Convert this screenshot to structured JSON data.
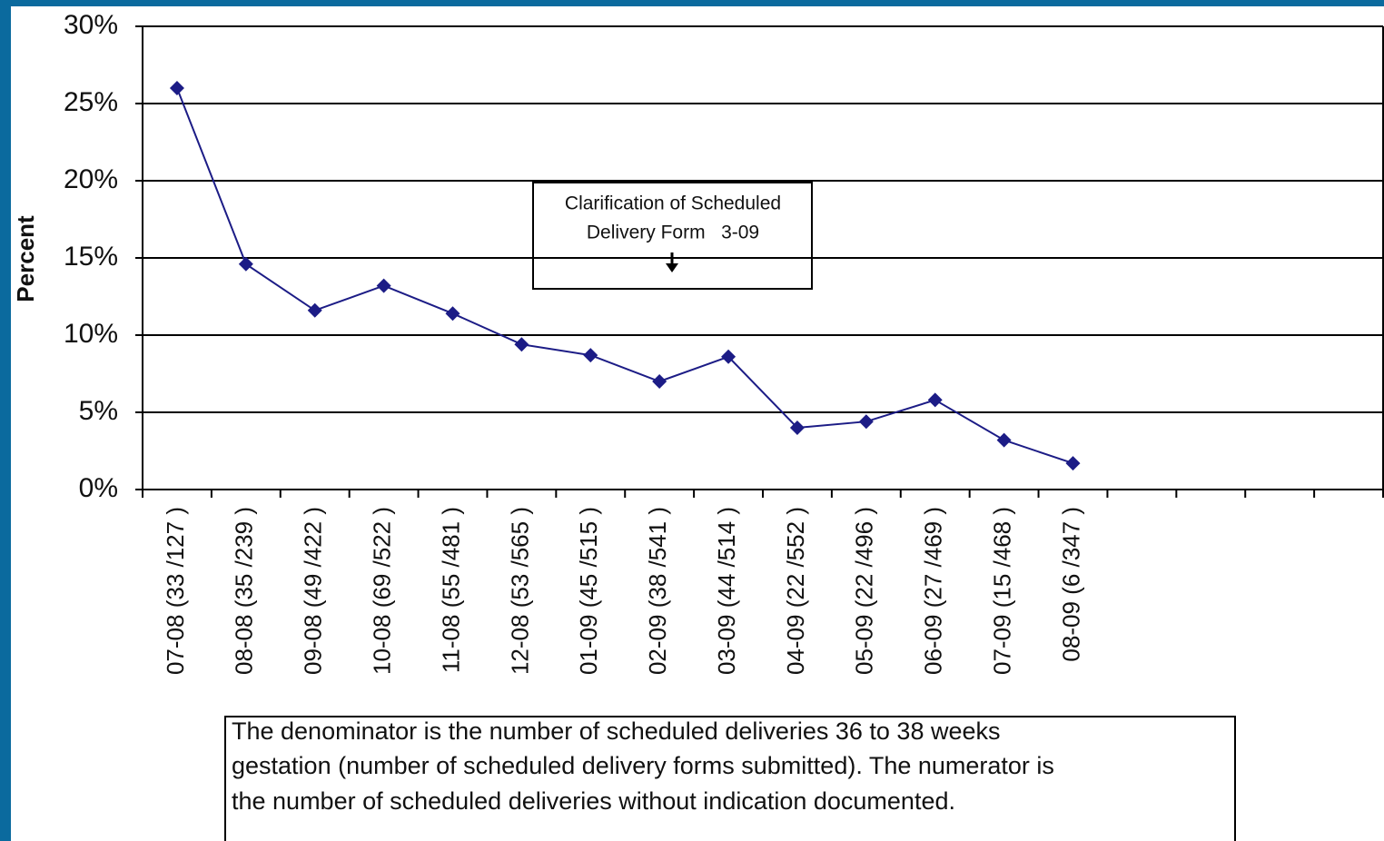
{
  "chart_data": {
    "type": "line",
    "ylabel": "Percent",
    "categories": [
      "07-08 (33 /127 )",
      "08-08 (35 /239 )",
      "09-08 (49 /422 )",
      "10-08 (69 /522 )",
      "11-08 (55 /481 )",
      "12-08 (53 /565 )",
      "01-09 (45 /515 )",
      "02-09 (38 /541 )",
      "03-09 (44 /514 )",
      "04-09 (22 /552 )",
      "05-09 (22 /496 )",
      "06-09 (27 /469 )",
      "07-09 (15 /468 )",
      "08-09 (6 /347 )",
      null,
      null,
      null,
      null
    ],
    "series": [
      {
        "color": "#1c1c86",
        "values": [
          26.0,
          14.6,
          11.6,
          13.2,
          11.4,
          9.4,
          8.7,
          7.0,
          8.6,
          4.0,
          4.4,
          5.8,
          3.2,
          1.7,
          null,
          null,
          null,
          null
        ]
      }
    ],
    "ylim": [
      0,
      30
    ],
    "yticks": [
      {
        "value": 0,
        "label": "0%"
      },
      {
        "value": 5,
        "label": "5%"
      },
      {
        "value": 10,
        "label": "10%"
      },
      {
        "value": 15,
        "label": "15%"
      },
      {
        "value": 20,
        "label": "20%"
      },
      {
        "value": 25,
        "label": "25%"
      },
      {
        "value": 30,
        "label": "30%"
      }
    ],
    "grid": true,
    "annotation": [
      "Clarification of Scheduled",
      "Delivery Form   3-09"
    ],
    "note": [
      "The denominator is the number of scheduled deliveries 36 to 38 weeks",
      "gestation (number of scheduled delivery forms submitted).  The numerator is",
      "the number of scheduled deliveries without indication documented."
    ]
  }
}
